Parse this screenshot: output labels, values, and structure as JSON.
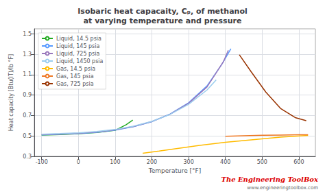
{
  "chart_data": {
    "type": "line",
    "title": "Isobaric heat capacaity, Cₚ, of methanol\nat varying temperature and pressure",
    "xlabel": "Temperature [°F]",
    "ylabel": "Heat capacity [Btu(IT)/lb °F]",
    "xlim": [
      -120,
      645
    ],
    "ylim": [
      0.3,
      1.55
    ],
    "xticks": [
      -100,
      0,
      100,
      200,
      300,
      400,
      500,
      600
    ],
    "yticks": [
      0.3,
      0.5,
      0.7,
      0.9,
      1.1,
      1.3,
      1.5
    ],
    "grid": true,
    "legend": "upper left",
    "annotations": [
      {
        "text": "The Engineering ToolBox",
        "color": "#dd0000"
      },
      {
        "text": "www.engineeringtoolbox.com",
        "color": "#666666"
      }
    ],
    "series": [
      {
        "name": "Liquid, 14.5 psia",
        "color": "#22aa22",
        "x": [
          -100,
          -50,
          0,
          50,
          100,
          130,
          148
        ],
        "values": [
          0.508,
          0.514,
          0.521,
          0.534,
          0.555,
          0.61,
          0.655
        ]
      },
      {
        "name": "Liquid, 145 psia",
        "color": "#5599ff",
        "x": [
          -100,
          -50,
          0,
          50,
          100,
          150,
          200,
          250,
          300,
          350,
          390,
          415
        ],
        "values": [
          0.51,
          0.516,
          0.523,
          0.536,
          0.557,
          0.59,
          0.64,
          0.715,
          0.825,
          0.99,
          1.2,
          1.355
        ]
      },
      {
        "name": "Liquid, 725 psia",
        "color": "#9977bb",
        "x": [
          -100,
          -50,
          0,
          50,
          100,
          150,
          200,
          250,
          300,
          350,
          395,
          408
        ],
        "values": [
          0.513,
          0.519,
          0.526,
          0.539,
          0.56,
          0.593,
          0.641,
          0.714,
          0.82,
          0.98,
          1.23,
          1.34
        ]
      },
      {
        "name": "Liquid, 1450 psia",
        "color": "#99ccee",
        "x": [
          -100,
          -50,
          0,
          50,
          100,
          150,
          200,
          250,
          300,
          350,
          375
        ],
        "values": [
          0.517,
          0.523,
          0.53,
          0.543,
          0.563,
          0.596,
          0.643,
          0.712,
          0.81,
          0.95,
          1.05
        ]
      },
      {
        "name": "Gas, 14.5 psia",
        "color": "#ffbb00",
        "x": [
          175,
          220,
          270,
          330,
          400,
          470,
          550,
          625
        ],
        "values": [
          0.33,
          0.352,
          0.378,
          0.408,
          0.438,
          0.462,
          0.488,
          0.505
        ]
      },
      {
        "name": "Gas, 145 psia",
        "color": "#ee7722",
        "x": [
          400,
          450,
          500,
          550,
          600,
          625
        ],
        "values": [
          0.497,
          0.502,
          0.506,
          0.509,
          0.511,
          0.512
        ]
      },
      {
        "name": "Gas, 725 psia",
        "color": "#993300",
        "x": [
          438,
          470,
          510,
          550,
          590,
          620
        ],
        "values": [
          1.295,
          1.13,
          0.93,
          0.77,
          0.68,
          0.65
        ]
      }
    ]
  }
}
